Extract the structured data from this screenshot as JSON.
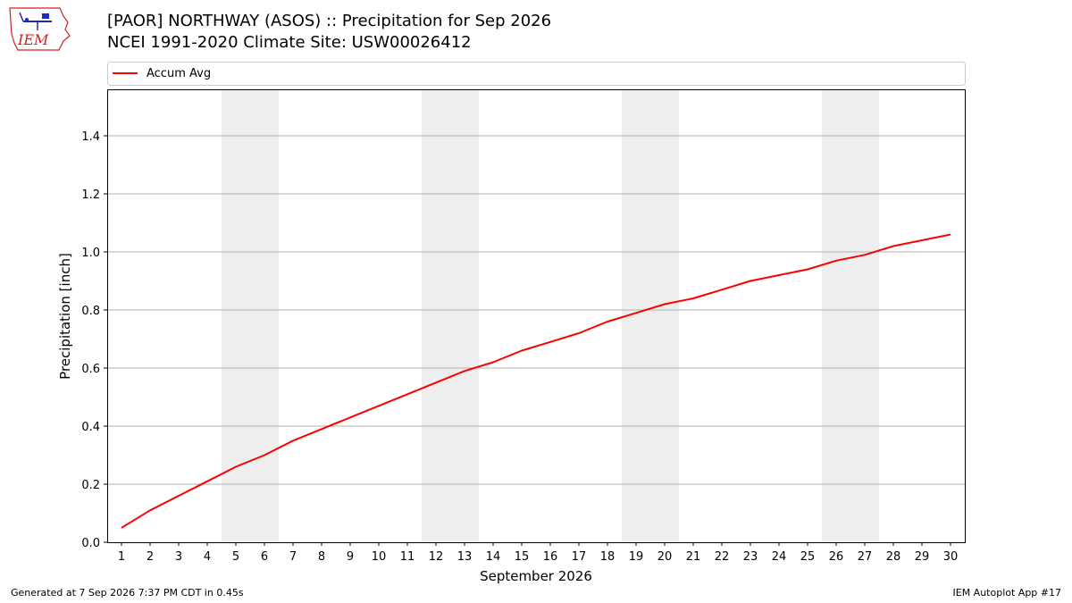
{
  "title_line1": "[PAOR] NORTHWAY (ASOS) :: Precipitation for Sep 2026",
  "title_line2": "NCEI 1991-2020 Climate Site: USW00026412",
  "logo_text": "IEM",
  "footer_left": "Generated at 7 Sep 2026 7:37 PM CDT in 0.45s",
  "footer_right": "IEM Autoplot App #17",
  "colors": {
    "line": "#ff0000",
    "weekend_band": "#eeeeee",
    "grid": "#b0b0b0",
    "logo_blue": "#1c2bb8",
    "logo_red": "#d12121"
  },
  "chart_data": {
    "type": "line",
    "title": "[PAOR] NORTHWAY (ASOS) :: Precipitation for Sep 2026",
    "subtitle": "NCEI 1991-2020 Climate Site: USW00026412",
    "xlabel": "September 2026",
    "ylabel": "Precipitation [inch]",
    "xlim": [
      0.5,
      30.5
    ],
    "ylim": [
      0,
      1.56
    ],
    "grid": "horizontal",
    "legend": "top",
    "x_ticks": [
      1,
      2,
      3,
      4,
      5,
      6,
      7,
      8,
      9,
      10,
      11,
      12,
      13,
      14,
      15,
      16,
      17,
      18,
      19,
      20,
      21,
      22,
      23,
      24,
      25,
      26,
      27,
      28,
      29,
      30
    ],
    "y_ticks": [
      0.0,
      0.2,
      0.4,
      0.6,
      0.8,
      1.0,
      1.2,
      1.4
    ],
    "y_tick_labels": [
      "0.0",
      "0.2",
      "0.4",
      "0.6",
      "0.8",
      "1.0",
      "1.2",
      "1.4"
    ],
    "weekend_bands": [
      [
        4.5,
        6.5
      ],
      [
        11.5,
        13.5
      ],
      [
        18.5,
        20.5
      ],
      [
        25.5,
        27.5
      ]
    ],
    "x": [
      1,
      2,
      3,
      4,
      5,
      6,
      7,
      8,
      9,
      10,
      11,
      12,
      13,
      14,
      15,
      16,
      17,
      18,
      19,
      20,
      21,
      22,
      23,
      24,
      25,
      26,
      27,
      28,
      29,
      30
    ],
    "series": [
      {
        "name": "Accum Avg",
        "color": "#ff0000",
        "values": [
          0.05,
          0.11,
          0.16,
          0.21,
          0.26,
          0.3,
          0.35,
          0.39,
          0.43,
          0.47,
          0.51,
          0.55,
          0.59,
          0.62,
          0.66,
          0.69,
          0.72,
          0.76,
          0.79,
          0.82,
          0.84,
          0.87,
          0.9,
          0.92,
          0.94,
          0.97,
          0.99,
          1.02,
          1.04,
          1.06
        ]
      }
    ]
  }
}
